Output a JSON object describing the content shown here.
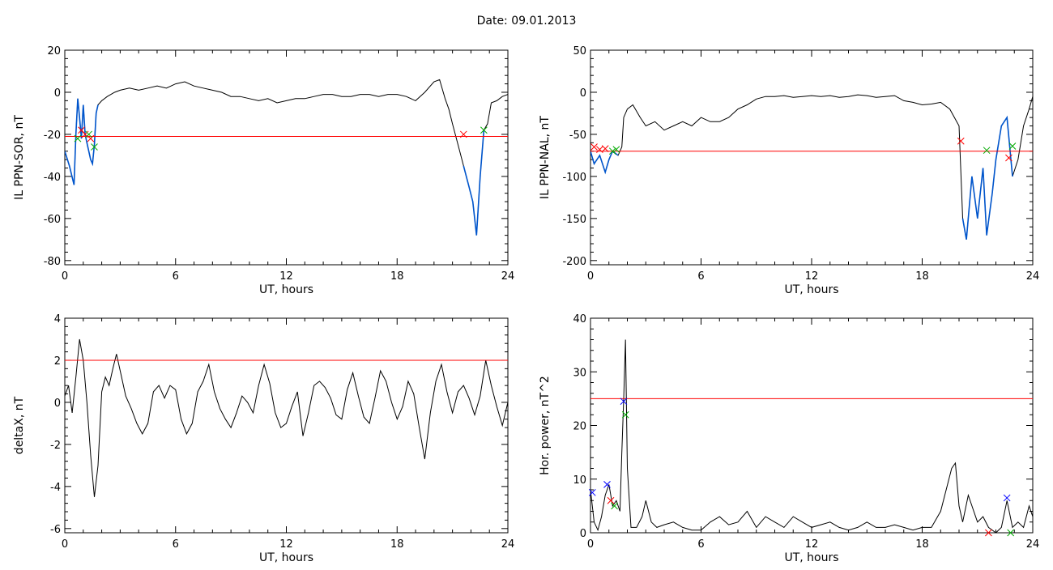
{
  "title": "Date:  09.01.2013",
  "colors": {
    "trace": "#000000",
    "threshold": "#ff0000",
    "highlight": "#0055cc",
    "marker_red": "#ff0000",
    "marker_green": "#00aa00",
    "marker_blue": "#0000ff"
  },
  "chart_data": [
    {
      "type": "line",
      "xlabel": "UT, hours",
      "ylabel": "IL PPN-SOR, nT",
      "xlim": [
        0,
        24
      ],
      "ylim": [
        -82,
        20
      ],
      "xticks": [
        0,
        6,
        12,
        18,
        24
      ],
      "yticks": [
        -80,
        -60,
        -40,
        -20,
        0,
        20
      ],
      "threshold": -21,
      "series": [
        {
          "x": [
            0,
            0.25,
            0.5,
            0.6,
            0.7,
            0.8,
            0.9,
            1.0,
            1.1,
            1.2,
            1.4,
            1.5,
            1.6,
            1.7,
            1.8,
            2.0,
            2.3,
            2.7,
            3,
            3.5,
            4,
            4.5,
            5,
            5.5,
            6,
            6.5,
            7,
            7.5,
            8,
            8.5,
            9,
            9.5,
            10,
            10.5,
            11,
            11.5,
            12,
            12.5,
            13,
            13.5,
            14,
            14.5,
            15,
            15.5,
            16,
            16.5,
            17,
            17.5,
            18,
            18.5,
            19,
            19.5,
            20,
            20.3,
            20.6,
            20.8,
            21.0,
            21.3,
            21.6,
            21.9,
            22.1,
            22.3,
            22.5,
            22.7,
            22.9,
            23.1,
            23.4,
            23.7,
            24
          ],
          "y": [
            -28,
            -35,
            -44,
            -20,
            -3,
            -12,
            -22,
            -6,
            -20,
            -24,
            -32,
            -34,
            -25,
            -10,
            -6,
            -4,
            -2,
            0,
            1,
            2,
            1,
            2,
            3,
            2,
            4,
            5,
            3,
            2,
            1,
            0,
            -2,
            -2,
            -3,
            -4,
            -3,
            -5,
            -4,
            -3,
            -3,
            -2,
            -1,
            -1,
            -2,
            -2,
            -1,
            -1,
            -2,
            -1,
            -1,
            -2,
            -4,
            0,
            5,
            6,
            -3,
            -8,
            -15,
            -25,
            -35,
            -45,
            -52,
            -68,
            -40,
            -18,
            -15,
            -5,
            -4,
            -2,
            -1
          ]
        }
      ],
      "highlight_ranges": [
        [
          0,
          1.8
        ],
        [
          21.5,
          22.8
        ]
      ],
      "markers": [
        {
          "x": 0.9,
          "y": -18,
          "color": "red"
        },
        {
          "x": 1.1,
          "y": -20,
          "color": "red"
        },
        {
          "x": 1.4,
          "y": -22,
          "color": "red"
        },
        {
          "x": 0.7,
          "y": -22,
          "color": "green"
        },
        {
          "x": 1.3,
          "y": -20,
          "color": "green"
        },
        {
          "x": 1.6,
          "y": -26,
          "color": "green"
        },
        {
          "x": 21.6,
          "y": -20,
          "color": "red"
        },
        {
          "x": 22.7,
          "y": -18,
          "color": "green"
        }
      ]
    },
    {
      "type": "line",
      "xlabel": "UT, hours",
      "ylabel": "IL PPN-NAL, nT",
      "xlim": [
        0,
        24
      ],
      "ylim": [
        -205,
        50
      ],
      "xticks": [
        0,
        6,
        12,
        18,
        24
      ],
      "yticks": [
        -200,
        -150,
        -100,
        -50,
        0,
        50
      ],
      "threshold": -70,
      "series": [
        {
          "x": [
            0,
            0.2,
            0.5,
            0.8,
            1.0,
            1.2,
            1.5,
            1.7,
            1.8,
            2.0,
            2.3,
            2.7,
            3,
            3.5,
            4,
            4.5,
            5,
            5.5,
            6,
            6.5,
            7,
            7.5,
            8,
            8.5,
            9,
            9.5,
            10,
            10.5,
            11,
            11.5,
            12,
            12.5,
            13,
            13.5,
            14,
            14.5,
            15,
            15.5,
            16,
            16.5,
            17,
            17.5,
            18,
            18.5,
            19,
            19.5,
            20,
            20.2,
            20.4,
            20.7,
            21.0,
            21.3,
            21.5,
            21.8,
            22.0,
            22.3,
            22.6,
            22.9,
            23.2,
            23.5,
            23.8,
            24
          ],
          "y": [
            -70,
            -85,
            -75,
            -95,
            -80,
            -70,
            -75,
            -65,
            -30,
            -20,
            -15,
            -30,
            -40,
            -35,
            -45,
            -40,
            -35,
            -40,
            -30,
            -35,
            -35,
            -30,
            -20,
            -15,
            -8,
            -5,
            -5,
            -4,
            -6,
            -5,
            -4,
            -5,
            -4,
            -6,
            -5,
            -3,
            -4,
            -6,
            -5,
            -4,
            -10,
            -12,
            -15,
            -14,
            -12,
            -20,
            -40,
            -150,
            -175,
            -100,
            -150,
            -90,
            -170,
            -120,
            -80,
            -40,
            -30,
            -100,
            -80,
            -40,
            -20,
            -5
          ]
        }
      ],
      "highlight_ranges": [
        [
          0,
          1.6
        ],
        [
          20.1,
          22.9
        ]
      ],
      "markers": [
        {
          "x": 0.2,
          "y": -65,
          "color": "red"
        },
        {
          "x": 0.5,
          "y": -68,
          "color": "red"
        },
        {
          "x": 0.8,
          "y": -67,
          "color": "red"
        },
        {
          "x": 1.2,
          "y": -70,
          "color": "green"
        },
        {
          "x": 1.4,
          "y": -68,
          "color": "green"
        },
        {
          "x": 20.1,
          "y": -58,
          "color": "red"
        },
        {
          "x": 21.5,
          "y": -69,
          "color": "green"
        },
        {
          "x": 22.7,
          "y": -78,
          "color": "red"
        },
        {
          "x": 22.9,
          "y": -64,
          "color": "green"
        }
      ]
    },
    {
      "type": "line",
      "xlabel": "UT, hours",
      "ylabel": "deltaX, nT",
      "xlim": [
        0,
        24
      ],
      "ylim": [
        -6.2,
        4
      ],
      "xticks": [
        0,
        6,
        12,
        18,
        24
      ],
      "yticks": [
        -6,
        -4,
        -2,
        0,
        2,
        4
      ],
      "threshold": 2,
      "series": [
        {
          "x": [
            0,
            0.2,
            0.4,
            0.6,
            0.8,
            1.0,
            1.2,
            1.4,
            1.6,
            1.8,
            2.0,
            2.2,
            2.4,
            2.6,
            2.8,
            3.0,
            3.3,
            3.6,
            3.9,
            4.2,
            4.5,
            4.8,
            5.1,
            5.4,
            5.7,
            6.0,
            6.3,
            6.6,
            6.9,
            7.2,
            7.5,
            7.8,
            8.1,
            8.4,
            8.7,
            9.0,
            9.3,
            9.6,
            9.9,
            10.2,
            10.5,
            10.8,
            11.1,
            11.4,
            11.7,
            12.0,
            12.3,
            12.6,
            12.9,
            13.2,
            13.5,
            13.8,
            14.1,
            14.4,
            14.7,
            15.0,
            15.3,
            15.6,
            15.9,
            16.2,
            16.5,
            16.8,
            17.1,
            17.4,
            17.7,
            18.0,
            18.3,
            18.6,
            18.9,
            19.2,
            19.5,
            19.8,
            20.1,
            20.4,
            20.7,
            21.0,
            21.3,
            21.6,
            21.9,
            22.2,
            22.5,
            22.8,
            23.1,
            23.4,
            23.7,
            24
          ],
          "y": [
            0.3,
            0.8,
            -0.5,
            1.2,
            3.0,
            2.0,
            0,
            -2.5,
            -4.5,
            -3.0,
            0.5,
            1.2,
            0.8,
            1.6,
            2.3,
            1.5,
            0.3,
            -0.3,
            -1.0,
            -1.5,
            -1.0,
            0.5,
            0.8,
            0.2,
            0.8,
            0.6,
            -0.8,
            -1.5,
            -1.0,
            0.5,
            1.0,
            1.8,
            0.5,
            -0.3,
            -0.8,
            -1.2,
            -0.5,
            0.3,
            0,
            -0.5,
            0.8,
            1.8,
            0.9,
            -0.5,
            -1.2,
            -1.0,
            -0.2,
            0.5,
            -1.6,
            -0.5,
            0.8,
            1.0,
            0.7,
            0.2,
            -0.6,
            -0.8,
            0.6,
            1.4,
            0.3,
            -0.7,
            -1.0,
            0.2,
            1.5,
            1.0,
            0,
            -0.8,
            -0.2,
            1.0,
            0.4,
            -1.2,
            -2.7,
            -0.5,
            1.0,
            1.8,
            0.5,
            -0.5,
            0.5,
            0.8,
            0.2,
            -0.6,
            0.3,
            2.0,
            0.8,
            -0.2,
            -1.1,
            0
          ]
        }
      ],
      "highlight_ranges": [],
      "markers": []
    },
    {
      "type": "line",
      "xlabel": "UT, hours",
      "ylabel": "Hor. power, nT^2",
      "xlim": [
        0,
        24
      ],
      "ylim": [
        0,
        40
      ],
      "xticks": [
        0,
        6,
        12,
        18,
        24
      ],
      "yticks": [
        0,
        10,
        20,
        30,
        40
      ],
      "threshold": 25,
      "series": [
        {
          "x": [
            0,
            0.2,
            0.4,
            0.6,
            0.8,
            1.0,
            1.2,
            1.4,
            1.6,
            1.7,
            1.8,
            1.9,
            2.0,
            2.2,
            2.5,
            2.8,
            3.0,
            3.3,
            3.6,
            4,
            4.5,
            5,
            5.5,
            6,
            6.5,
            7,
            7.5,
            8,
            8.5,
            9,
            9.5,
            10,
            10.5,
            11,
            11.5,
            12,
            12.5,
            13,
            13.5,
            14,
            14.5,
            15,
            15.5,
            16,
            16.5,
            17,
            17.5,
            18,
            18.5,
            19,
            19.3,
            19.6,
            19.8,
            20.0,
            20.2,
            20.5,
            20.8,
            21.0,
            21.3,
            21.6,
            22.0,
            22.3,
            22.6,
            22.9,
            23.2,
            23.5,
            23.8,
            24
          ],
          "y": [
            8,
            2,
            0.5,
            3,
            7,
            9,
            5,
            6,
            4,
            15,
            25,
            36,
            12,
            1,
            1,
            3,
            6,
            2,
            1,
            1.5,
            2,
            1,
            0.5,
            0.5,
            2,
            3,
            1.5,
            2,
            4,
            1,
            3,
            2,
            1,
            3,
            2,
            1,
            1.5,
            2,
            1,
            0.5,
            1,
            2,
            1,
            1,
            1.5,
            1,
            0.5,
            1,
            1,
            4,
            8,
            12,
            13,
            5,
            2,
            7,
            4,
            2,
            3,
            1,
            0,
            1,
            6,
            1,
            2,
            1,
            5,
            3
          ]
        }
      ],
      "highlight_ranges": [],
      "markers": [
        {
          "x": 0.1,
          "y": 7.5,
          "color": "blue"
        },
        {
          "x": 0.9,
          "y": 9,
          "color": "blue"
        },
        {
          "x": 1.1,
          "y": 6,
          "color": "red"
        },
        {
          "x": 1.3,
          "y": 5,
          "color": "green"
        },
        {
          "x": 1.8,
          "y": 24.5,
          "color": "blue"
        },
        {
          "x": 1.9,
          "y": 22,
          "color": "green"
        },
        {
          "x": 21.6,
          "y": 0,
          "color": "red"
        },
        {
          "x": 22.6,
          "y": 6.5,
          "color": "blue"
        },
        {
          "x": 22.8,
          "y": 0,
          "color": "green"
        }
      ]
    }
  ]
}
